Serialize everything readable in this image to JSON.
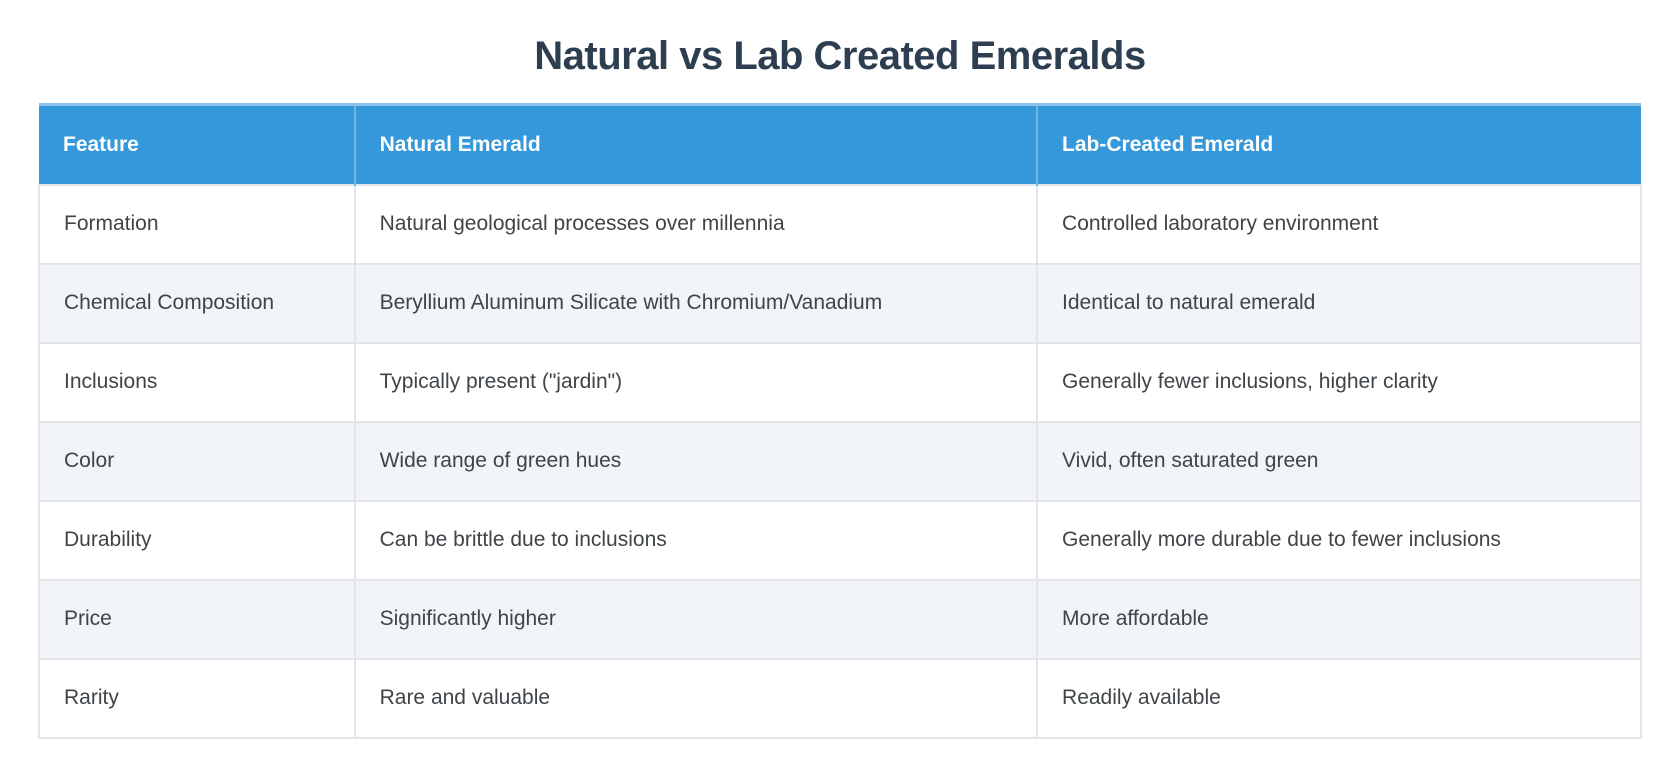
{
  "page": {
    "title": "Natural vs Lab Created Emeralds"
  },
  "table": {
    "columns": [
      "Feature",
      "Natural Emerald",
      "Lab-Created Emerald"
    ],
    "rows": [
      {
        "feature": "Formation",
        "natural": "Natural geological processes over millennia",
        "lab": "Controlled laboratory environment"
      },
      {
        "feature": "Chemical Composition",
        "natural": "Beryllium Aluminum Silicate with Chromium/Vanadium",
        "lab": "Identical to natural emerald"
      },
      {
        "feature": "Inclusions",
        "natural": "Typically present (\"jardin\")",
        "lab": "Generally fewer inclusions, higher clarity"
      },
      {
        "feature": "Color",
        "natural": "Wide range of green hues",
        "lab": "Vivid, often saturated green"
      },
      {
        "feature": "Durability",
        "natural": "Can be brittle due to inclusions",
        "lab": "Generally more durable due to fewer inclusions"
      },
      {
        "feature": "Price",
        "natural": "Significantly higher",
        "lab": "More affordable"
      },
      {
        "feature": "Rarity",
        "natural": "Rare and valuable",
        "lab": "Readily available"
      }
    ]
  },
  "colors": {
    "header_bg": "#3498db",
    "header_top_border": "#8cc2ec",
    "header_divider": "#74b6e5",
    "header_text": "#ffffff",
    "title_text": "#2c3e50",
    "body_text": "#3f4448",
    "row_bg": "#ffffff",
    "row_alt_bg": "#f1f4f9",
    "cell_border": "#e3e5e9"
  }
}
